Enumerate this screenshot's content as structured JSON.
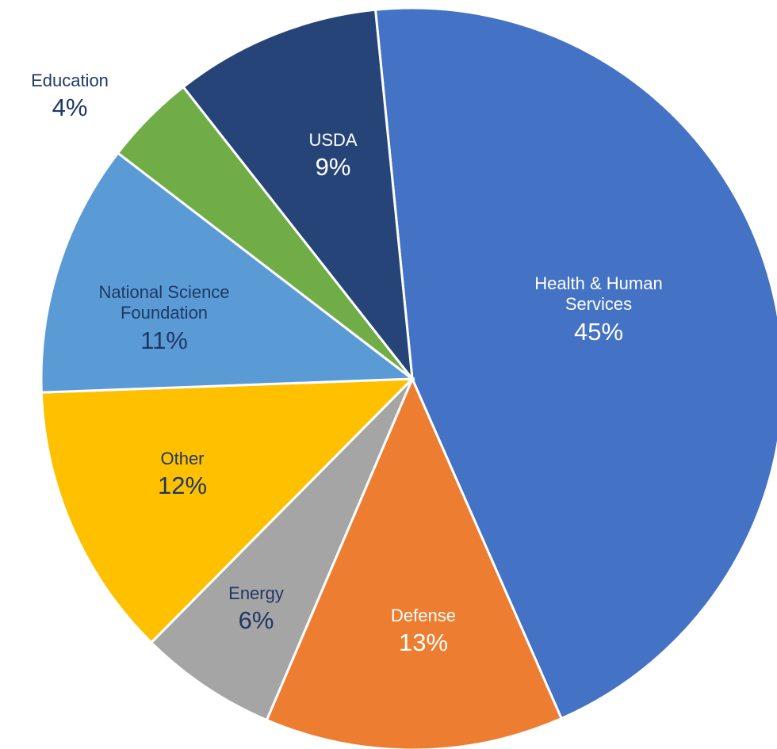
{
  "chart_data": {
    "type": "pie",
    "categories": [
      "Health & Human Services",
      "Defense",
      "Energy",
      "Other",
      "National Science Foundation",
      "Education",
      "USDA"
    ],
    "values": [
      45,
      13,
      6,
      12,
      11,
      4,
      9
    ],
    "value_labels": [
      "45%",
      "13%",
      "6%",
      "12%",
      "11%",
      "4%",
      "9%"
    ],
    "colors": [
      "#4472c4",
      "#ed7d31",
      "#a5a5a5",
      "#ffc000",
      "#5b9bd5",
      "#70ad47",
      "#264478"
    ]
  }
}
